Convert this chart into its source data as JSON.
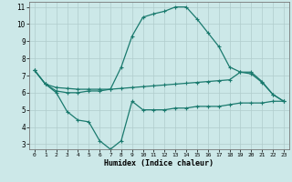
{
  "xlabel": "Humidex (Indice chaleur)",
  "xlim": [
    -0.5,
    23.5
  ],
  "ylim": [
    2.7,
    11.3
  ],
  "yticks": [
    3,
    4,
    5,
    6,
    7,
    8,
    9,
    10,
    11
  ],
  "xticks": [
    0,
    1,
    2,
    3,
    4,
    5,
    6,
    7,
    8,
    9,
    10,
    11,
    12,
    13,
    14,
    15,
    16,
    17,
    18,
    19,
    20,
    21,
    22,
    23
  ],
  "background_color": "#cce8e8",
  "grid_color": "#b0cccc",
  "line_color": "#1a7a6e",
  "line1_x": [
    0,
    1,
    2,
    3,
    4,
    5,
    6,
    7,
    8,
    9,
    10,
    11,
    12,
    13,
    14,
    15,
    16,
    17,
    18,
    19,
    20,
    21,
    22,
    23
  ],
  "line1_y": [
    7.3,
    6.5,
    6.0,
    4.9,
    4.4,
    4.3,
    3.2,
    2.7,
    3.2,
    5.5,
    5.0,
    5.0,
    5.0,
    5.1,
    5.1,
    5.2,
    5.2,
    5.2,
    5.3,
    5.4,
    5.4,
    5.4,
    5.5,
    5.5
  ],
  "line2_x": [
    0,
    1,
    2,
    3,
    4,
    5,
    6,
    7,
    8,
    9,
    10,
    11,
    12,
    13,
    14,
    15,
    16,
    17,
    18,
    19,
    20,
    21,
    22,
    23
  ],
  "line2_y": [
    7.3,
    6.5,
    6.3,
    6.25,
    6.2,
    6.2,
    6.2,
    6.2,
    6.25,
    6.3,
    6.35,
    6.4,
    6.45,
    6.5,
    6.55,
    6.6,
    6.65,
    6.7,
    6.75,
    7.2,
    7.2,
    6.65,
    5.9,
    5.5
  ],
  "line3_x": [
    0,
    1,
    2,
    3,
    4,
    5,
    6,
    7,
    8,
    9,
    10,
    11,
    12,
    13,
    14,
    15,
    16,
    17,
    18,
    19,
    20,
    21,
    22,
    23
  ],
  "line3_y": [
    7.3,
    6.5,
    6.1,
    6.0,
    6.0,
    6.1,
    6.1,
    6.2,
    7.5,
    9.3,
    10.4,
    10.6,
    10.75,
    11.0,
    11.0,
    10.3,
    9.5,
    8.7,
    7.5,
    7.2,
    7.1,
    6.6,
    5.9,
    5.5
  ]
}
